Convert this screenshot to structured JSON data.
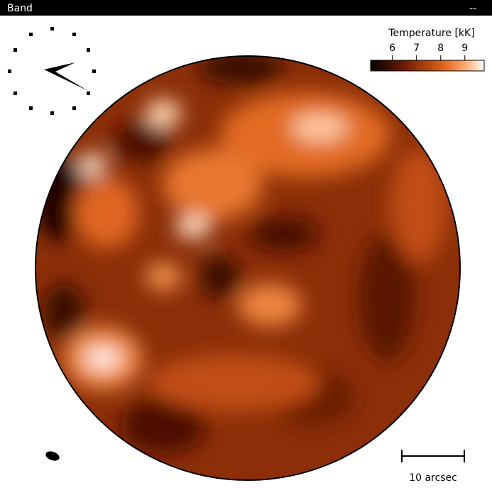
{
  "header": {
    "title": "Band",
    "control": "--"
  },
  "colorbar": {
    "label": "Temperature [kK]",
    "lim": [
      5.1,
      9.8
    ],
    "ticks": [
      6,
      7,
      8,
      9
    ]
  },
  "scale_bar": {
    "label": "10 arcsec"
  }
}
